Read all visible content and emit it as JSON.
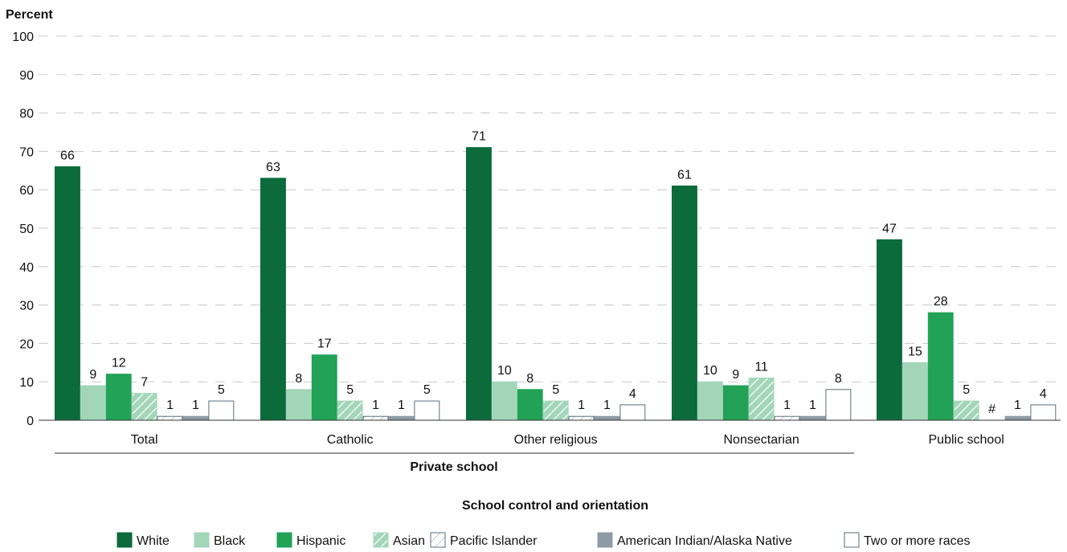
{
  "chart_data": {
    "type": "bar",
    "ylabel": "Percent",
    "xlabel": "School control and orientation",
    "group_label": "Private school",
    "ylim": [
      0,
      100
    ],
    "yticks": [
      0,
      10,
      20,
      30,
      40,
      50,
      60,
      70,
      80,
      90,
      100
    ],
    "grid": "horizontal-dashed",
    "legend_position": "bottom",
    "categories": [
      "Total",
      "Catholic",
      "Other religious",
      "Nonsectarian",
      "Public school"
    ],
    "series": [
      {
        "name": "White",
        "color": "#0b6b3a",
        "pattern": "solid",
        "values": [
          66,
          63,
          71,
          61,
          47
        ],
        "labels": [
          "66",
          "63",
          "71",
          "61",
          "47"
        ]
      },
      {
        "name": "Black",
        "color": "#a3d6b9",
        "pattern": "solid",
        "values": [
          9,
          8,
          10,
          10,
          15
        ],
        "labels": [
          "9",
          "8",
          "10",
          "10",
          "15"
        ]
      },
      {
        "name": "Hispanic",
        "color": "#22a256",
        "pattern": "solid",
        "values": [
          12,
          17,
          8,
          9,
          28
        ],
        "labels": [
          "12",
          "17",
          "8",
          "9",
          "28"
        ]
      },
      {
        "name": "Asian",
        "color": "#a3d6b9",
        "pattern": "hatch",
        "values": [
          7,
          5,
          5,
          11,
          5
        ],
        "labels": [
          "7",
          "5",
          "5",
          "11",
          "5"
        ]
      },
      {
        "name": "Pacific Islander",
        "color": "#ffffff",
        "pattern": "hatch-light",
        "values": [
          1,
          1,
          1,
          1,
          0
        ],
        "labels": [
          "1",
          "1",
          "1",
          "1",
          "#"
        ]
      },
      {
        "name": "American Indian/Alaska Native",
        "color": "#8c9ba6",
        "pattern": "solid",
        "values": [
          1,
          1,
          1,
          1,
          1
        ],
        "labels": [
          "1",
          "1",
          "1",
          "1",
          "1"
        ]
      },
      {
        "name": "Two or more races",
        "color": "#ffffff",
        "pattern": "outline",
        "values": [
          5,
          5,
          4,
          8,
          4
        ],
        "labels": [
          "5",
          "5",
          "4",
          "8",
          "4"
        ]
      }
    ]
  }
}
